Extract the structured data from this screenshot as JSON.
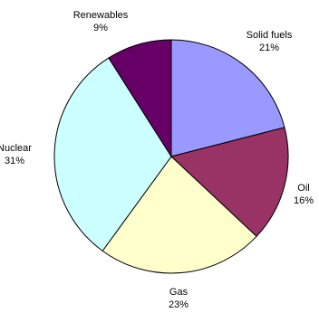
{
  "chart_data": {
    "type": "pie",
    "slices": [
      {
        "label": "Solid fuels",
        "value": 21,
        "value_label": "21%",
        "color": "#9999ff"
      },
      {
        "label": "Oil",
        "value": 16,
        "value_label": "16%",
        "color": "#993366"
      },
      {
        "label": "Gas",
        "value": 23,
        "value_label": "23%",
        "color": "#ffffcc"
      },
      {
        "label": "Nuclear",
        "value": 31,
        "value_label": "31%",
        "color": "#ccffff"
      },
      {
        "label": "Renewables",
        "value": 9,
        "value_label": "9%",
        "color": "#660066"
      }
    ],
    "start": "12 o'clock",
    "direction": "clockwise",
    "legend": "none",
    "data_labels": "outside slices, name above percentage"
  }
}
